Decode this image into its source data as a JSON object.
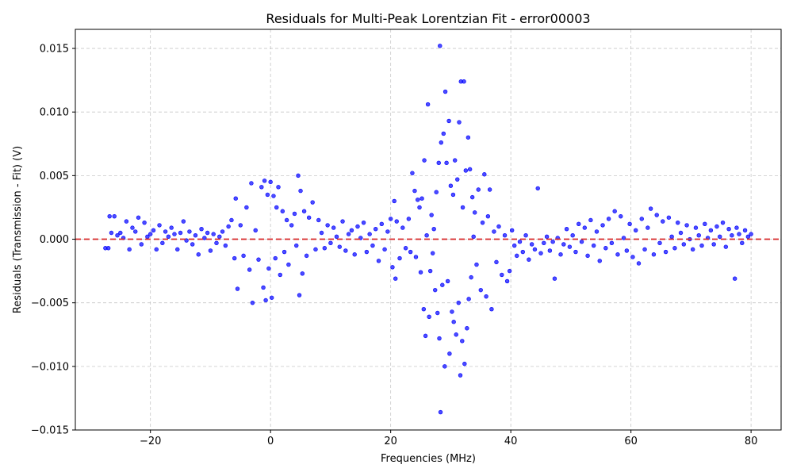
{
  "chart_data": {
    "type": "scatter",
    "title": "Residuals for Multi-Peak Lorentzian Fit - error00003",
    "xlabel": "Frequencies (MHz)",
    "ylabel": "Residuals (Transmission - Fit) (V)",
    "xlim": [
      -32.5,
      85
    ],
    "ylim": [
      -0.015,
      0.0165
    ],
    "xticks": [
      -20,
      0,
      20,
      40,
      60,
      80
    ],
    "xtick_labels": [
      "−20",
      "0",
      "20",
      "40",
      "60",
      "80"
    ],
    "yticks": [
      -0.015,
      -0.01,
      -0.005,
      0.0,
      0.005,
      0.01,
      0.015
    ],
    "ytick_labels": [
      "−0.015",
      "−0.010",
      "−0.005",
      "0.000",
      "0.005",
      "0.010",
      "0.015"
    ],
    "grid": true,
    "reference_line": {
      "y": 0.0,
      "color": "#d62728",
      "style": "dashed"
    },
    "point_color": "#0000ff",
    "series": [
      {
        "name": "residuals",
        "points": [
          [
            -27.5,
            -0.0007
          ],
          [
            -27.0,
            -0.0007
          ],
          [
            -26.8,
            0.0018
          ],
          [
            -26.5,
            0.0005
          ],
          [
            -26.0,
            0.0018
          ],
          [
            -25.5,
            0.0003
          ],
          [
            -25.0,
            0.0005
          ],
          [
            -24.5,
            0.0001
          ],
          [
            -24.0,
            0.0014
          ],
          [
            -23.5,
            -0.0008
          ],
          [
            -23.0,
            0.0009
          ],
          [
            -22.5,
            0.0006
          ],
          [
            -22.0,
            0.0017
          ],
          [
            -21.5,
            -0.0004
          ],
          [
            -21.0,
            0.0013
          ],
          [
            -20.5,
            0.0002
          ],
          [
            -20.0,
            0.0004
          ],
          [
            -19.5,
            0.0007
          ],
          [
            -19.0,
            -0.0008
          ],
          [
            -18.5,
            0.0011
          ],
          [
            -18.0,
            -0.0003
          ],
          [
            -17.5,
            0.0006
          ],
          [
            -17.0,
            0.0002
          ],
          [
            -16.5,
            0.0009
          ],
          [
            -16.0,
            0.0004
          ],
          [
            -15.5,
            -0.0008
          ],
          [
            -15.0,
            0.0005
          ],
          [
            -14.5,
            0.0014
          ],
          [
            -14.0,
            -0.0001
          ],
          [
            -13.5,
            0.0006
          ],
          [
            -13.0,
            -0.0004
          ],
          [
            -12.5,
            0.0003
          ],
          [
            -12.0,
            -0.0012
          ],
          [
            -11.5,
            0.0008
          ],
          [
            -11.0,
            0.0001
          ],
          [
            -10.5,
            0.0005
          ],
          [
            -10.0,
            -0.0009
          ],
          [
            -9.5,
            0.0004
          ],
          [
            -9.0,
            -0.0003
          ],
          [
            -8.5,
            0.0002
          ],
          [
            -8.0,
            0.0006
          ],
          [
            -7.5,
            -0.0005
          ],
          [
            -7.0,
            0.001
          ],
          [
            -6.5,
            0.0015
          ],
          [
            -6.0,
            -0.0015
          ],
          [
            -5.8,
            0.0032
          ],
          [
            -5.5,
            -0.0039
          ],
          [
            -5.0,
            0.0011
          ],
          [
            -4.5,
            -0.0013
          ],
          [
            -4.0,
            0.0025
          ],
          [
            -3.5,
            -0.0024
          ],
          [
            -3.2,
            0.0044
          ],
          [
            -3.0,
            -0.005
          ],
          [
            -2.5,
            0.0007
          ],
          [
            -2.0,
            -0.0016
          ],
          [
            -1.5,
            0.0041
          ],
          [
            -1.2,
            -0.0038
          ],
          [
            -1.0,
            0.0046
          ],
          [
            -0.8,
            -0.0048
          ],
          [
            -0.5,
            0.0035
          ],
          [
            -0.3,
            -0.0023
          ],
          [
            0.0,
            0.0045
          ],
          [
            0.2,
            -0.0046
          ],
          [
            0.5,
            0.0034
          ],
          [
            0.8,
            -0.0015
          ],
          [
            1.0,
            0.0025
          ],
          [
            1.3,
            0.0041
          ],
          [
            1.6,
            -0.0028
          ],
          [
            2.0,
            0.0022
          ],
          [
            2.3,
            -0.001
          ],
          [
            2.7,
            0.0015
          ],
          [
            3.0,
            -0.002
          ],
          [
            3.5,
            0.0011
          ],
          [
            4.0,
            0.002
          ],
          [
            4.3,
            -0.0005
          ],
          [
            4.6,
            0.005
          ],
          [
            4.8,
            -0.0044
          ],
          [
            5.0,
            0.0038
          ],
          [
            5.3,
            -0.0027
          ],
          [
            5.6,
            0.0022
          ],
          [
            6.0,
            -0.0013
          ],
          [
            6.4,
            0.0017
          ],
          [
            7.0,
            0.0029
          ],
          [
            7.5,
            -0.0008
          ],
          [
            8.0,
            0.0015
          ],
          [
            8.5,
            0.0005
          ],
          [
            9.0,
            -0.0007
          ],
          [
            9.5,
            0.0011
          ],
          [
            10.0,
            -0.0003
          ],
          [
            10.5,
            0.0009
          ],
          [
            11.0,
            0.0002
          ],
          [
            11.5,
            -0.0006
          ],
          [
            12.0,
            0.0014
          ],
          [
            12.5,
            -0.0009
          ],
          [
            13.0,
            0.0004
          ],
          [
            13.5,
            0.0007
          ],
          [
            14.0,
            -0.0012
          ],
          [
            14.5,
            0.001
          ],
          [
            15.0,
            0.0001
          ],
          [
            15.5,
            0.0013
          ],
          [
            16.0,
            -0.001
          ],
          [
            16.5,
            0.0004
          ],
          [
            17.0,
            -0.0005
          ],
          [
            17.5,
            0.0008
          ],
          [
            18.0,
            -0.0017
          ],
          [
            18.5,
            0.0012
          ],
          [
            19.0,
            -0.0008
          ],
          [
            19.5,
            0.0006
          ],
          [
            20.0,
            0.0016
          ],
          [
            20.3,
            -0.0022
          ],
          [
            20.6,
            0.003
          ],
          [
            20.8,
            -0.0031
          ],
          [
            21.0,
            0.0014
          ],
          [
            21.5,
            -0.0015
          ],
          [
            22.0,
            0.0009
          ],
          [
            22.5,
            -0.0007
          ],
          [
            23.0,
            0.0016
          ],
          [
            23.3,
            -0.001
          ],
          [
            23.6,
            0.0052
          ],
          [
            24.0,
            0.0038
          ],
          [
            24.2,
            -0.0014
          ],
          [
            24.5,
            0.0031
          ],
          [
            24.8,
            0.0025
          ],
          [
            25.0,
            -0.0026
          ],
          [
            25.2,
            0.0032
          ],
          [
            25.5,
            -0.0055
          ],
          [
            25.6,
            0.0062
          ],
          [
            25.8,
            -0.0076
          ],
          [
            26.0,
            0.0003
          ],
          [
            26.2,
            0.0106
          ],
          [
            26.4,
            -0.0061
          ],
          [
            26.6,
            -0.0025
          ],
          [
            26.8,
            0.0019
          ],
          [
            27.0,
            -0.0011
          ],
          [
            27.2,
            0.0008
          ],
          [
            27.4,
            -0.004
          ],
          [
            27.6,
            0.0037
          ],
          [
            27.8,
            -0.0058
          ],
          [
            28.0,
            0.006
          ],
          [
            28.1,
            -0.0078
          ],
          [
            28.2,
            0.0152
          ],
          [
            28.3,
            -0.0136
          ],
          [
            28.4,
            0.0076
          ],
          [
            28.6,
            -0.0036
          ],
          [
            28.8,
            0.0083
          ],
          [
            29.0,
            -0.01
          ],
          [
            29.1,
            0.0116
          ],
          [
            29.3,
            0.006
          ],
          [
            29.5,
            -0.0033
          ],
          [
            29.7,
            0.0093
          ],
          [
            29.8,
            -0.009
          ],
          [
            30.0,
            0.0042
          ],
          [
            30.2,
            -0.0057
          ],
          [
            30.4,
            0.0035
          ],
          [
            30.5,
            -0.0065
          ],
          [
            30.7,
            0.0062
          ],
          [
            30.9,
            -0.0075
          ],
          [
            31.1,
            0.0047
          ],
          [
            31.3,
            -0.005
          ],
          [
            31.4,
            0.0092
          ],
          [
            31.6,
            -0.0107
          ],
          [
            31.7,
            0.0124
          ],
          [
            31.9,
            -0.008
          ],
          [
            32.0,
            0.0025
          ],
          [
            32.2,
            0.0124
          ],
          [
            32.3,
            -0.0098
          ],
          [
            32.5,
            0.0054
          ],
          [
            32.7,
            -0.007
          ],
          [
            32.9,
            0.008
          ],
          [
            33.0,
            -0.0047
          ],
          [
            33.2,
            0.0055
          ],
          [
            33.4,
            -0.003
          ],
          [
            33.6,
            0.0033
          ],
          [
            33.8,
            0.0002
          ],
          [
            34.0,
            0.0021
          ],
          [
            34.3,
            -0.002
          ],
          [
            34.6,
            0.0039
          ],
          [
            35.0,
            -0.004
          ],
          [
            35.3,
            0.0013
          ],
          [
            35.6,
            0.0051
          ],
          [
            35.9,
            -0.0045
          ],
          [
            36.2,
            0.0018
          ],
          [
            36.5,
            0.0039
          ],
          [
            36.8,
            -0.0055
          ],
          [
            37.2,
            0.0006
          ],
          [
            37.6,
            -0.0018
          ],
          [
            38.0,
            0.001
          ],
          [
            38.5,
            -0.0028
          ],
          [
            39.0,
            0.0003
          ],
          [
            39.4,
            -0.0033
          ],
          [
            39.8,
            -0.0025
          ],
          [
            40.2,
            0.0007
          ],
          [
            40.6,
            -0.0005
          ],
          [
            41.0,
            -0.0013
          ],
          [
            41.5,
            -0.0002
          ],
          [
            42.0,
            -0.001
          ],
          [
            42.5,
            0.0003
          ],
          [
            43.0,
            -0.0016
          ],
          [
            43.5,
            -0.0004
          ],
          [
            44.0,
            -0.0008
          ],
          [
            44.5,
            0.004
          ],
          [
            45.0,
            -0.0011
          ],
          [
            45.5,
            -0.0003
          ],
          [
            46.0,
            0.0002
          ],
          [
            46.5,
            -0.0009
          ],
          [
            47.0,
            -0.0002
          ],
          [
            47.3,
            -0.0031
          ],
          [
            47.8,
            0.0001
          ],
          [
            48.3,
            -0.0012
          ],
          [
            48.8,
            -0.0004
          ],
          [
            49.3,
            0.0008
          ],
          [
            49.8,
            -0.0006
          ],
          [
            50.3,
            0.0003
          ],
          [
            50.8,
            -0.001
          ],
          [
            51.3,
            0.0012
          ],
          [
            51.8,
            -0.0002
          ],
          [
            52.3,
            0.0009
          ],
          [
            52.8,
            -0.0013
          ],
          [
            53.3,
            0.0015
          ],
          [
            53.8,
            -0.0005
          ],
          [
            54.3,
            0.0006
          ],
          [
            54.8,
            -0.0017
          ],
          [
            55.3,
            0.0011
          ],
          [
            55.8,
            -0.0007
          ],
          [
            56.3,
            0.0016
          ],
          [
            56.8,
            -0.0003
          ],
          [
            57.3,
            0.0022
          ],
          [
            57.8,
            -0.0012
          ],
          [
            58.3,
            0.0018
          ],
          [
            58.8,
            0.0001
          ],
          [
            59.3,
            -0.0009
          ],
          [
            59.8,
            0.0012
          ],
          [
            60.3,
            -0.0014
          ],
          [
            60.8,
            0.0007
          ],
          [
            61.3,
            -0.0019
          ],
          [
            61.8,
            0.0016
          ],
          [
            62.3,
            -0.0008
          ],
          [
            62.8,
            0.0009
          ],
          [
            63.3,
            0.0024
          ],
          [
            63.8,
            -0.0012
          ],
          [
            64.3,
            0.0019
          ],
          [
            64.8,
            -0.0003
          ],
          [
            65.3,
            0.0014
          ],
          [
            65.8,
            -0.001
          ],
          [
            66.3,
            0.0017
          ],
          [
            66.8,
            0.0002
          ],
          [
            67.3,
            -0.0007
          ],
          [
            67.8,
            0.0013
          ],
          [
            68.3,
            0.0005
          ],
          [
            68.8,
            -0.0004
          ],
          [
            69.3,
            0.0011
          ],
          [
            69.8,
            0.0
          ],
          [
            70.3,
            -0.0008
          ],
          [
            70.8,
            0.0009
          ],
          [
            71.3,
            0.0003
          ],
          [
            71.8,
            -0.0005
          ],
          [
            72.3,
            0.0012
          ],
          [
            72.8,
            0.0001
          ],
          [
            73.3,
            0.0007
          ],
          [
            73.8,
            -0.0004
          ],
          [
            74.3,
            0.001
          ],
          [
            74.8,
            0.0002
          ],
          [
            75.3,
            0.0013
          ],
          [
            75.8,
            -0.0006
          ],
          [
            76.3,
            0.0008
          ],
          [
            76.8,
            0.0003
          ],
          [
            77.3,
            -0.0031
          ],
          [
            77.6,
            0.0009
          ],
          [
            78.0,
            0.0004
          ],
          [
            78.5,
            -0.0003
          ],
          [
            79.0,
            0.0007
          ],
          [
            79.5,
            0.0002
          ],
          [
            80.0,
            0.0004
          ]
        ]
      }
    ]
  }
}
